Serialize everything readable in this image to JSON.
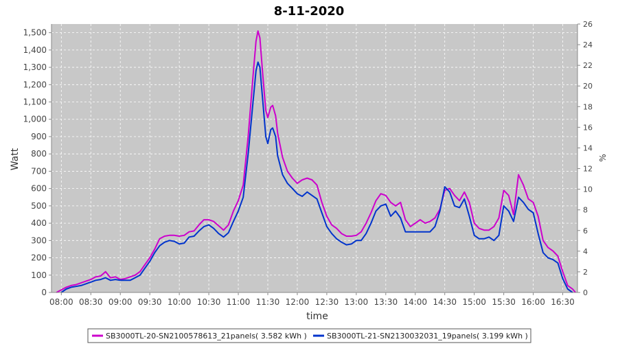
{
  "chart_data": {
    "type": "line",
    "title": "8-11-2020",
    "xlabel": "time",
    "ylabel": "Watt",
    "y2label": "%",
    "ylim": [
      0,
      1550
    ],
    "y2lim": [
      0,
      26
    ],
    "xlim": [
      "07:50",
      "16:45"
    ],
    "grid": true,
    "legend": "bottom",
    "x_ticks": [
      "08:00",
      "08:30",
      "09:00",
      "09:30",
      "10:00",
      "10:30",
      "11:00",
      "11:30",
      "12:00",
      "12:30",
      "13:00",
      "13:30",
      "14:00",
      "14:30",
      "15:00",
      "15:30",
      "16:00",
      "16:30"
    ],
    "y_ticks": [
      0,
      100,
      200,
      300,
      400,
      500,
      600,
      700,
      800,
      900,
      1000,
      1100,
      1200,
      1300,
      1400,
      1500
    ],
    "y_tick_labels": [
      "0",
      "100",
      "200",
      "300",
      "400",
      "500",
      "600",
      "700",
      "800",
      "900",
      "1,000",
      "1,100",
      "1,200",
      "1,300",
      "1,400",
      "1,500"
    ],
    "y2_ticks": [
      0,
      2,
      4,
      6,
      8,
      10,
      12,
      14,
      16,
      18,
      20,
      22,
      24,
      26
    ],
    "series": [
      {
        "name": "SB3000TL-20-SN2100578613_21panels( 3.582 kWh )",
        "color": "#cc00cc",
        "points": [
          [
            "07:55",
            0
          ],
          [
            "08:00",
            15
          ],
          [
            "08:05",
            30
          ],
          [
            "08:10",
            40
          ],
          [
            "08:15",
            45
          ],
          [
            "08:20",
            55
          ],
          [
            "08:25",
            65
          ],
          [
            "08:30",
            75
          ],
          [
            "08:35",
            90
          ],
          [
            "08:40",
            95
          ],
          [
            "08:45",
            120
          ],
          [
            "08:50",
            85
          ],
          [
            "08:55",
            90
          ],
          [
            "09:00",
            75
          ],
          [
            "09:05",
            80
          ],
          [
            "09:10",
            90
          ],
          [
            "09:15",
            100
          ],
          [
            "09:20",
            120
          ],
          [
            "09:25",
            160
          ],
          [
            "09:30",
            200
          ],
          [
            "09:35",
            250
          ],
          [
            "09:40",
            310
          ],
          [
            "09:45",
            325
          ],
          [
            "09:50",
            330
          ],
          [
            "09:55",
            330
          ],
          [
            "10:00",
            325
          ],
          [
            "10:05",
            330
          ],
          [
            "10:10",
            350
          ],
          [
            "10:15",
            355
          ],
          [
            "10:20",
            390
          ],
          [
            "10:25",
            420
          ],
          [
            "10:30",
            420
          ],
          [
            "10:35",
            410
          ],
          [
            "10:40",
            385
          ],
          [
            "10:45",
            360
          ],
          [
            "10:50",
            390
          ],
          [
            "10:55",
            470
          ],
          [
            "11:00",
            530
          ],
          [
            "11:05",
            620
          ],
          [
            "11:10",
            900
          ],
          [
            "11:15",
            1250
          ],
          [
            "11:18",
            1450
          ],
          [
            "11:20",
            1510
          ],
          [
            "11:22",
            1470
          ],
          [
            "11:25",
            1250
          ],
          [
            "11:28",
            1050
          ],
          [
            "11:30",
            1010
          ],
          [
            "11:33",
            1070
          ],
          [
            "11:35",
            1080
          ],
          [
            "11:38",
            1020
          ],
          [
            "11:40",
            920
          ],
          [
            "11:45",
            780
          ],
          [
            "11:50",
            700
          ],
          [
            "11:55",
            660
          ],
          [
            "12:00",
            630
          ],
          [
            "12:05",
            650
          ],
          [
            "12:10",
            660
          ],
          [
            "12:15",
            650
          ],
          [
            "12:20",
            620
          ],
          [
            "12:25",
            520
          ],
          [
            "12:30",
            440
          ],
          [
            "12:35",
            390
          ],
          [
            "12:40",
            370
          ],
          [
            "12:45",
            340
          ],
          [
            "12:50",
            325
          ],
          [
            "12:55",
            325
          ],
          [
            "13:00",
            330
          ],
          [
            "13:05",
            350
          ],
          [
            "13:10",
            400
          ],
          [
            "13:15",
            460
          ],
          [
            "13:20",
            530
          ],
          [
            "13:25",
            570
          ],
          [
            "13:30",
            560
          ],
          [
            "13:35",
            520
          ],
          [
            "13:40",
            500
          ],
          [
            "13:45",
            520
          ],
          [
            "13:50",
            420
          ],
          [
            "13:55",
            380
          ],
          [
            "14:00",
            400
          ],
          [
            "14:05",
            420
          ],
          [
            "14:10",
            400
          ],
          [
            "14:15",
            410
          ],
          [
            "14:20",
            430
          ],
          [
            "14:25",
            480
          ],
          [
            "14:30",
            590
          ],
          [
            "14:35",
            600
          ],
          [
            "14:40",
            560
          ],
          [
            "14:45",
            530
          ],
          [
            "14:50",
            580
          ],
          [
            "14:55",
            520
          ],
          [
            "15:00",
            400
          ],
          [
            "15:05",
            370
          ],
          [
            "15:10",
            360
          ],
          [
            "15:15",
            360
          ],
          [
            "15:20",
            380
          ],
          [
            "15:25",
            430
          ],
          [
            "15:30",
            590
          ],
          [
            "15:35",
            560
          ],
          [
            "15:40",
            450
          ],
          [
            "15:45",
            680
          ],
          [
            "15:50",
            620
          ],
          [
            "15:55",
            540
          ],
          [
            "16:00",
            520
          ],
          [
            "16:05",
            440
          ],
          [
            "16:10",
            300
          ],
          [
            "16:15",
            260
          ],
          [
            "16:20",
            240
          ],
          [
            "16:25",
            210
          ],
          [
            "16:30",
            120
          ],
          [
            "16:35",
            40
          ],
          [
            "16:40",
            20
          ],
          [
            "16:43",
            0
          ]
        ]
      },
      {
        "name": "SB3000TL-21-SN2130032031_19panels( 3.199 kWh )",
        "color": "#0033cc",
        "points": [
          [
            "08:00",
            0
          ],
          [
            "08:05",
            20
          ],
          [
            "08:10",
            30
          ],
          [
            "08:15",
            35
          ],
          [
            "08:20",
            40
          ],
          [
            "08:25",
            50
          ],
          [
            "08:30",
            60
          ],
          [
            "08:35",
            70
          ],
          [
            "08:40",
            75
          ],
          [
            "08:45",
            85
          ],
          [
            "08:50",
            70
          ],
          [
            "08:55",
            75
          ],
          [
            "09:00",
            70
          ],
          [
            "09:05",
            70
          ],
          [
            "09:10",
            70
          ],
          [
            "09:15",
            85
          ],
          [
            "09:20",
            100
          ],
          [
            "09:25",
            140
          ],
          [
            "09:30",
            180
          ],
          [
            "09:35",
            230
          ],
          [
            "09:40",
            270
          ],
          [
            "09:45",
            290
          ],
          [
            "09:50",
            300
          ],
          [
            "09:55",
            295
          ],
          [
            "10:00",
            280
          ],
          [
            "10:05",
            285
          ],
          [
            "10:10",
            320
          ],
          [
            "10:15",
            325
          ],
          [
            "10:20",
            355
          ],
          [
            "10:25",
            380
          ],
          [
            "10:30",
            390
          ],
          [
            "10:35",
            370
          ],
          [
            "10:40",
            340
          ],
          [
            "10:45",
            320
          ],
          [
            "10:50",
            345
          ],
          [
            "10:55",
            410
          ],
          [
            "11:00",
            470
          ],
          [
            "11:05",
            550
          ],
          [
            "11:10",
            800
          ],
          [
            "11:15",
            1100
          ],
          [
            "11:18",
            1280
          ],
          [
            "11:20",
            1330
          ],
          [
            "11:22",
            1300
          ],
          [
            "11:25",
            1100
          ],
          [
            "11:28",
            900
          ],
          [
            "11:30",
            860
          ],
          [
            "11:33",
            940
          ],
          [
            "11:35",
            950
          ],
          [
            "11:38",
            900
          ],
          [
            "11:40",
            790
          ],
          [
            "11:45",
            680
          ],
          [
            "11:50",
            630
          ],
          [
            "11:55",
            600
          ],
          [
            "12:00",
            570
          ],
          [
            "12:05",
            555
          ],
          [
            "12:10",
            580
          ],
          [
            "12:15",
            560
          ],
          [
            "12:20",
            540
          ],
          [
            "12:25",
            460
          ],
          [
            "12:30",
            380
          ],
          [
            "12:35",
            340
          ],
          [
            "12:40",
            310
          ],
          [
            "12:45",
            290
          ],
          [
            "12:50",
            275
          ],
          [
            "12:55",
            280
          ],
          [
            "13:00",
            300
          ],
          [
            "13:05",
            300
          ],
          [
            "13:10",
            340
          ],
          [
            "13:15",
            400
          ],
          [
            "13:20",
            470
          ],
          [
            "13:25",
            500
          ],
          [
            "13:30",
            510
          ],
          [
            "13:35",
            440
          ],
          [
            "13:40",
            470
          ],
          [
            "13:45",
            430
          ],
          [
            "13:50",
            350
          ],
          [
            "13:55",
            350
          ],
          [
            "14:00",
            350
          ],
          [
            "14:05",
            350
          ],
          [
            "14:10",
            350
          ],
          [
            "14:15",
            350
          ],
          [
            "14:20",
            380
          ],
          [
            "14:25",
            470
          ],
          [
            "14:30",
            610
          ],
          [
            "14:35",
            580
          ],
          [
            "14:40",
            500
          ],
          [
            "14:45",
            490
          ],
          [
            "14:50",
            540
          ],
          [
            "14:55",
            440
          ],
          [
            "15:00",
            330
          ],
          [
            "15:05",
            310
          ],
          [
            "15:10",
            310
          ],
          [
            "15:15",
            320
          ],
          [
            "15:20",
            300
          ],
          [
            "15:25",
            330
          ],
          [
            "15:30",
            500
          ],
          [
            "15:35",
            470
          ],
          [
            "15:40",
            410
          ],
          [
            "15:45",
            550
          ],
          [
            "15:50",
            520
          ],
          [
            "15:55",
            480
          ],
          [
            "16:00",
            460
          ],
          [
            "16:05",
            340
          ],
          [
            "16:10",
            230
          ],
          [
            "16:15",
            200
          ],
          [
            "16:20",
            190
          ],
          [
            "16:25",
            170
          ],
          [
            "16:30",
            80
          ],
          [
            "16:35",
            20
          ],
          [
            "16:40",
            0
          ]
        ]
      }
    ]
  }
}
